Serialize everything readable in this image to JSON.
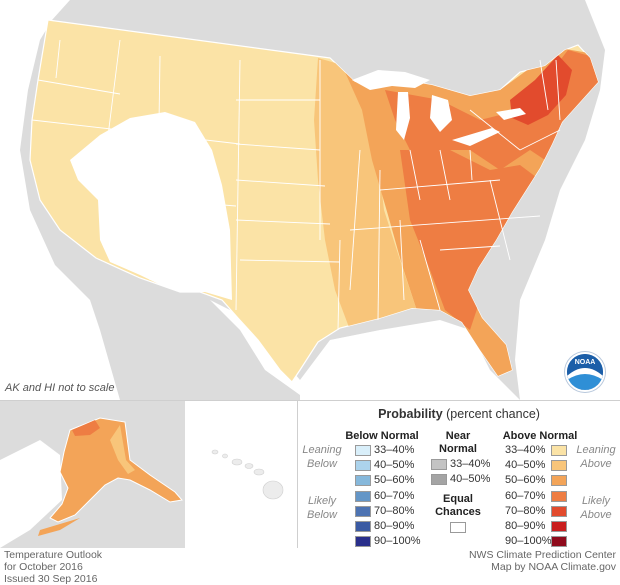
{
  "map": {
    "note_scale": "AK and HI not to scale",
    "logo_text": "NOAA",
    "colors": {
      "background_land": "#dcdcdc",
      "water": "#ffffff",
      "equal_chances": "#ffffff",
      "above_33_40": "#fbe3a6",
      "above_40_50": "#f8c57a",
      "above_50_60": "#f3a458",
      "above_60_70": "#ee7d43",
      "above_70_80": "#e24b2d",
      "above_80_90": "#c91e1e",
      "above_90_100": "#8f0b1c",
      "below_33_40": "#d9effa",
      "below_40_50": "#acd3ec",
      "below_50_60": "#86b8db",
      "below_60_70": "#6496c7",
      "below_70_80": "#4d73b2",
      "below_80_90": "#3a5aa3",
      "below_90_100": "#292f8b",
      "near_33_40": "#c3c3c3",
      "near_40_50": "#a4a4a4"
    }
  },
  "legend": {
    "title_bold": "Probability",
    "title_rest": " (percent chance)",
    "below_header": "Below Normal",
    "near_header_1": "Near",
    "near_header_2": "Normal",
    "above_header": "Above Normal",
    "below_leaning_1": "Leaning",
    "below_leaning_2": "Below",
    "below_likely_1": "Likely",
    "below_likely_2": "Below",
    "above_leaning_1": "Leaning",
    "above_leaning_2": "Above",
    "above_likely_1": "Likely",
    "above_likely_2": "Above",
    "equal_1": "Equal",
    "equal_2": "Chances",
    "ranges": [
      "33–40%",
      "40–50%",
      "50–60%",
      "60–70%",
      "70–80%",
      "80–90%",
      "90–100%"
    ],
    "near_ranges": [
      "33–40%",
      "40–50%"
    ]
  },
  "footer": {
    "left_1": "Temperature Outlook",
    "left_2": "for October 2016",
    "left_3": "Issued 30 Sep 2016",
    "right_1": "NWS Climate Prediction Center",
    "right_2": "Map by NOAA Climate.gov"
  }
}
